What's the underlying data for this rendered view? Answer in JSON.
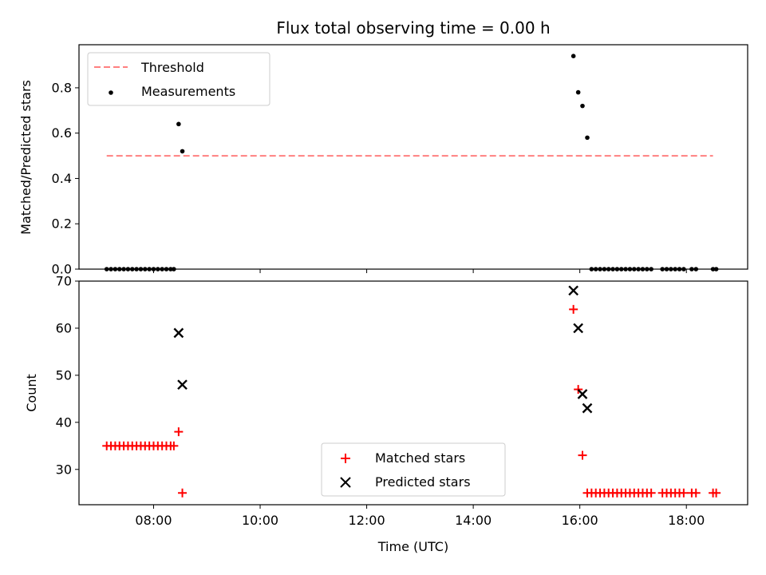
{
  "chart_data": [
    {
      "type": "scatter",
      "title": "Flux total observing time = 0.00 h",
      "ylabel": "Matched/Predicted stars",
      "xlabel": "",
      "xlim": [
        6.6,
        19.15
      ],
      "ylim": [
        0.0,
        0.99
      ],
      "yticks": [
        "0.0",
        "0.2",
        "0.4",
        "0.6",
        "0.8"
      ],
      "yticks_values": [
        0.0,
        0.2,
        0.4,
        0.6,
        0.8
      ],
      "legend": {
        "placement": "top-left",
        "entries": [
          "Threshold",
          "Measurements"
        ]
      },
      "threshold": {
        "name": "Threshold",
        "color": "#ff8080",
        "style": "dashed",
        "y": 0.5,
        "x": [
          7.12,
          18.5
        ]
      },
      "series": [
        {
          "name": "Measurements",
          "color": "#000000",
          "marker": "dot",
          "points": [
            [
              7.12,
              0
            ],
            [
              7.2,
              0
            ],
            [
              7.28,
              0
            ],
            [
              7.36,
              0
            ],
            [
              7.44,
              0
            ],
            [
              7.52,
              0
            ],
            [
              7.6,
              0
            ],
            [
              7.68,
              0
            ],
            [
              7.76,
              0
            ],
            [
              7.84,
              0
            ],
            [
              7.92,
              0
            ],
            [
              8.0,
              0
            ],
            [
              8.08,
              0
            ],
            [
              8.16,
              0
            ],
            [
              8.24,
              0
            ],
            [
              8.32,
              0
            ],
            [
              8.38,
              0
            ],
            [
              8.47,
              0.64
            ],
            [
              8.54,
              0.52
            ],
            [
              15.88,
              0.94
            ],
            [
              15.97,
              0.78
            ],
            [
              16.05,
              0.72
            ],
            [
              16.14,
              0.58
            ],
            [
              16.22,
              0
            ],
            [
              16.3,
              0
            ],
            [
              16.38,
              0
            ],
            [
              16.46,
              0
            ],
            [
              16.54,
              0
            ],
            [
              16.62,
              0
            ],
            [
              16.7,
              0
            ],
            [
              16.78,
              0
            ],
            [
              16.86,
              0
            ],
            [
              16.94,
              0
            ],
            [
              17.02,
              0
            ],
            [
              17.1,
              0
            ],
            [
              17.18,
              0
            ],
            [
              17.26,
              0
            ],
            [
              17.34,
              0
            ],
            [
              17.55,
              0
            ],
            [
              17.63,
              0
            ],
            [
              17.71,
              0
            ],
            [
              17.79,
              0
            ],
            [
              17.87,
              0
            ],
            [
              17.95,
              0
            ],
            [
              18.1,
              0
            ],
            [
              18.18,
              0
            ],
            [
              18.5,
              0
            ],
            [
              18.56,
              0
            ]
          ]
        }
      ]
    },
    {
      "type": "scatter",
      "xlabel": "Time (UTC)",
      "ylabel": "Count",
      "xlim": [
        6.6,
        19.15
      ],
      "ylim": [
        22.5,
        70.0
      ],
      "xticks": [
        "08:00",
        "10:00",
        "12:00",
        "14:00",
        "16:00",
        "18:00"
      ],
      "xticks_values": [
        8,
        10,
        12,
        14,
        16,
        18
      ],
      "yticks": [
        "30",
        "40",
        "50",
        "60",
        "70"
      ],
      "yticks_values": [
        30,
        40,
        50,
        60,
        70
      ],
      "legend": {
        "placement": "lower-center",
        "entries": [
          "Matched stars",
          "Predicted stars"
        ]
      },
      "series": [
        {
          "name": "Matched stars",
          "color": "#ff0000",
          "marker": "plus",
          "points": [
            [
              7.12,
              35
            ],
            [
              7.2,
              35
            ],
            [
              7.28,
              35
            ],
            [
              7.36,
              35
            ],
            [
              7.44,
              35
            ],
            [
              7.52,
              35
            ],
            [
              7.6,
              35
            ],
            [
              7.68,
              35
            ],
            [
              7.76,
              35
            ],
            [
              7.84,
              35
            ],
            [
              7.92,
              35
            ],
            [
              8.0,
              35
            ],
            [
              8.08,
              35
            ],
            [
              8.16,
              35
            ],
            [
              8.24,
              35
            ],
            [
              8.32,
              35
            ],
            [
              8.38,
              35
            ],
            [
              8.47,
              38
            ],
            [
              8.54,
              25
            ],
            [
              15.88,
              64
            ],
            [
              15.97,
              47
            ],
            [
              16.05,
              33
            ],
            [
              16.14,
              25
            ],
            [
              16.22,
              25
            ],
            [
              16.3,
              25
            ],
            [
              16.38,
              25
            ],
            [
              16.46,
              25
            ],
            [
              16.54,
              25
            ],
            [
              16.62,
              25
            ],
            [
              16.7,
              25
            ],
            [
              16.78,
              25
            ],
            [
              16.86,
              25
            ],
            [
              16.94,
              25
            ],
            [
              17.02,
              25
            ],
            [
              17.1,
              25
            ],
            [
              17.18,
              25
            ],
            [
              17.26,
              25
            ],
            [
              17.34,
              25
            ],
            [
              17.55,
              25
            ],
            [
              17.63,
              25
            ],
            [
              17.71,
              25
            ],
            [
              17.79,
              25
            ],
            [
              17.87,
              25
            ],
            [
              17.95,
              25
            ],
            [
              18.1,
              25
            ],
            [
              18.18,
              25
            ],
            [
              18.5,
              25
            ],
            [
              18.56,
              25
            ]
          ]
        },
        {
          "name": "Predicted stars",
          "color": "#000000",
          "marker": "x",
          "points": [
            [
              8.47,
              59
            ],
            [
              8.54,
              48
            ],
            [
              15.88,
              68
            ],
            [
              15.97,
              60
            ],
            [
              16.05,
              46
            ],
            [
              16.14,
              43
            ]
          ]
        }
      ]
    }
  ]
}
